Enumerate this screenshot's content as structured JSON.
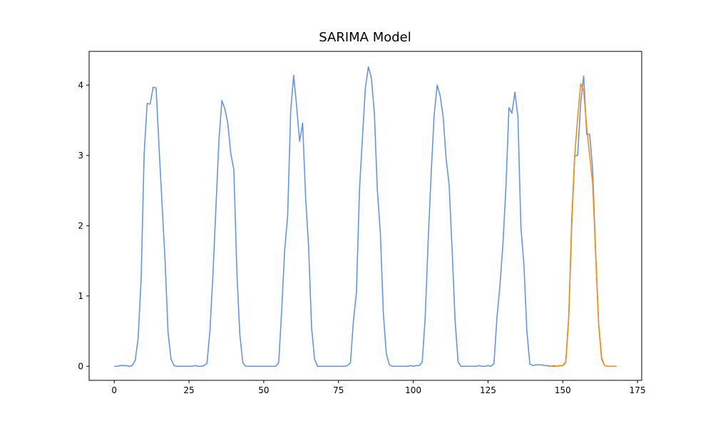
{
  "chart_data": {
    "type": "line",
    "title": "SARIMA Model",
    "xlim": [
      -8.4,
      176.4
    ],
    "xticks": [
      0,
      25,
      50,
      75,
      100,
      125,
      150,
      175
    ],
    "ylim": [
      -0.2,
      4.48
    ],
    "yticks": [
      0,
      1,
      2,
      3,
      4
    ],
    "series": [
      {
        "color": "#6495ed",
        "x": [
          0,
          1,
          2,
          3,
          4,
          5,
          6,
          7,
          8,
          9,
          10,
          11,
          12,
          13,
          14,
          15,
          16,
          17,
          18,
          19,
          20,
          21,
          22,
          23,
          24,
          25,
          26,
          27,
          28,
          29,
          30,
          31,
          32,
          33,
          34,
          35,
          36,
          37,
          38,
          39,
          40,
          41,
          42,
          43,
          44,
          45,
          46,
          47,
          48,
          49,
          50,
          51,
          52,
          53,
          54,
          55,
          56,
          57,
          58,
          59,
          60,
          61,
          62,
          63,
          64,
          65,
          66,
          67,
          68,
          69,
          70,
          71,
          72,
          73,
          74,
          75,
          76,
          77,
          78,
          79,
          80,
          81,
          82,
          83,
          84,
          85,
          86,
          87,
          88,
          89,
          90,
          91,
          92,
          93,
          94,
          95,
          96,
          97,
          98,
          99,
          100,
          101,
          102,
          103,
          104,
          105,
          106,
          107,
          108,
          109,
          110,
          111,
          112,
          113,
          114,
          115,
          116,
          117,
          118,
          119,
          120,
          121,
          122,
          123,
          124,
          125,
          126,
          127,
          128,
          129,
          130,
          131,
          132,
          133,
          134,
          135,
          136,
          137,
          138,
          139,
          140,
          141,
          142,
          143,
          144,
          145,
          146,
          147,
          148,
          149,
          150,
          151,
          152,
          153,
          154,
          155,
          156,
          157,
          158,
          159,
          160,
          161,
          162,
          163,
          164
        ],
        "values": [
          0,
          0,
          0.01,
          0.01,
          0.01,
          0,
          0.01,
          0.08,
          0.4,
          1.25,
          3.02,
          3.74,
          3.73,
          3.97,
          3.96,
          3.1,
          2.3,
          1.5,
          0.48,
          0.1,
          0.01,
          0,
          0,
          0,
          0,
          0,
          0,
          0.01,
          0,
          0,
          0.01,
          0.04,
          0.5,
          1.3,
          2.25,
          3.2,
          3.78,
          3.66,
          3.45,
          3.02,
          2.8,
          1.35,
          0.45,
          0.05,
          0,
          0,
          0,
          0,
          0,
          0,
          0,
          0,
          0,
          0,
          0,
          0.05,
          0.8,
          1.65,
          2.15,
          3.62,
          4.14,
          3.7,
          3.2,
          3.46,
          2.4,
          1.7,
          0.55,
          0.1,
          0,
          0,
          0,
          0,
          0,
          0,
          0,
          0,
          0,
          0,
          0.01,
          0.05,
          0.65,
          1.05,
          2.5,
          3.25,
          3.97,
          4.26,
          4.1,
          3.6,
          2.5,
          1.9,
          0.75,
          0.18,
          0.02,
          0,
          0,
          0,
          0,
          0,
          0,
          0.01,
          0,
          0.01,
          0.01,
          0.06,
          0.7,
          1.8,
          2.75,
          3.58,
          4.0,
          3.85,
          3.55,
          2.95,
          2.58,
          1.65,
          0.65,
          0.06,
          0,
          0,
          0,
          0,
          0,
          0,
          0.01,
          0,
          0,
          0.01,
          0,
          0.04,
          0.7,
          1.15,
          1.75,
          2.55,
          3.68,
          3.6,
          3.9,
          3.55,
          1.98,
          1.45,
          0.5,
          0.03,
          0.01,
          0.02,
          0.02,
          0.02,
          0.01,
          0.01,
          0,
          0,
          0,
          0.01,
          0.01,
          0.05,
          0.7,
          2.0,
          3.0,
          3.0,
          3.75,
          4.13,
          3.3,
          3.3,
          2.8,
          1.6,
          0.6,
          0.1,
          0.01
        ]
      },
      {
        "color": "#ff8c00",
        "x": [
          145,
          146,
          147,
          148,
          149,
          150,
          151,
          152,
          153,
          154,
          155,
          156,
          157,
          158,
          159,
          160,
          161,
          162,
          163,
          164,
          165,
          166,
          167,
          168
        ],
        "values": [
          0,
          0,
          0.01,
          0,
          0.01,
          0.01,
          0.06,
          0.7,
          2.1,
          3.0,
          3.55,
          4.02,
          3.92,
          3.4,
          3.0,
          2.6,
          1.6,
          0.6,
          0.12,
          0.01,
          0,
          0,
          0,
          0
        ]
      }
    ]
  }
}
